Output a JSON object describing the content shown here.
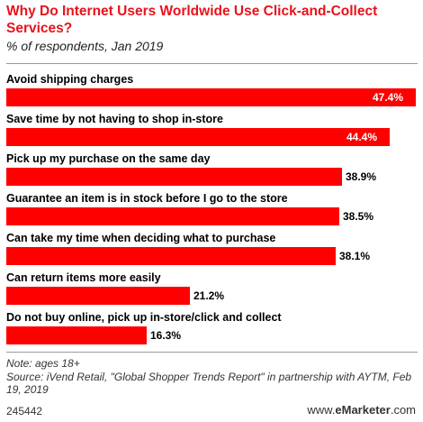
{
  "header": {
    "title": "Why Do Internet Users Worldwide Use Click-and-Collect Services?",
    "subtitle": "% of respondents, Jan 2019"
  },
  "chart_data": {
    "type": "bar",
    "orientation": "horizontal",
    "categories": [
      "Avoid shipping charges",
      "Save time by not having to shop in-store",
      "Pick up my purchase on the same day",
      "Guarantee an item is in stock before I go to the store",
      "Can take my time when deciding what to purchase",
      "Can return items more easily",
      "Do not buy online, pick up in-store/click and collect"
    ],
    "values": [
      47.4,
      44.4,
      38.9,
      38.5,
      38.1,
      21.2,
      16.3
    ],
    "value_labels": [
      "47.4%",
      "44.4%",
      "38.9%",
      "38.5%",
      "38.1%",
      "21.2%",
      "16.3%"
    ],
    "xlim": [
      0,
      47.4
    ],
    "bar_color": "#ff0000",
    "grid": false
  },
  "footer": {
    "note": "Note: ages 18+",
    "source": "Source: iVend Retail, \"Global Shopper Trends Report\" in partnership with AYTM, Feb 19, 2019",
    "chart_id": "245442",
    "brand_prefix": "www.",
    "brand_name": "eMarketer",
    "brand_suffix": ".com"
  }
}
